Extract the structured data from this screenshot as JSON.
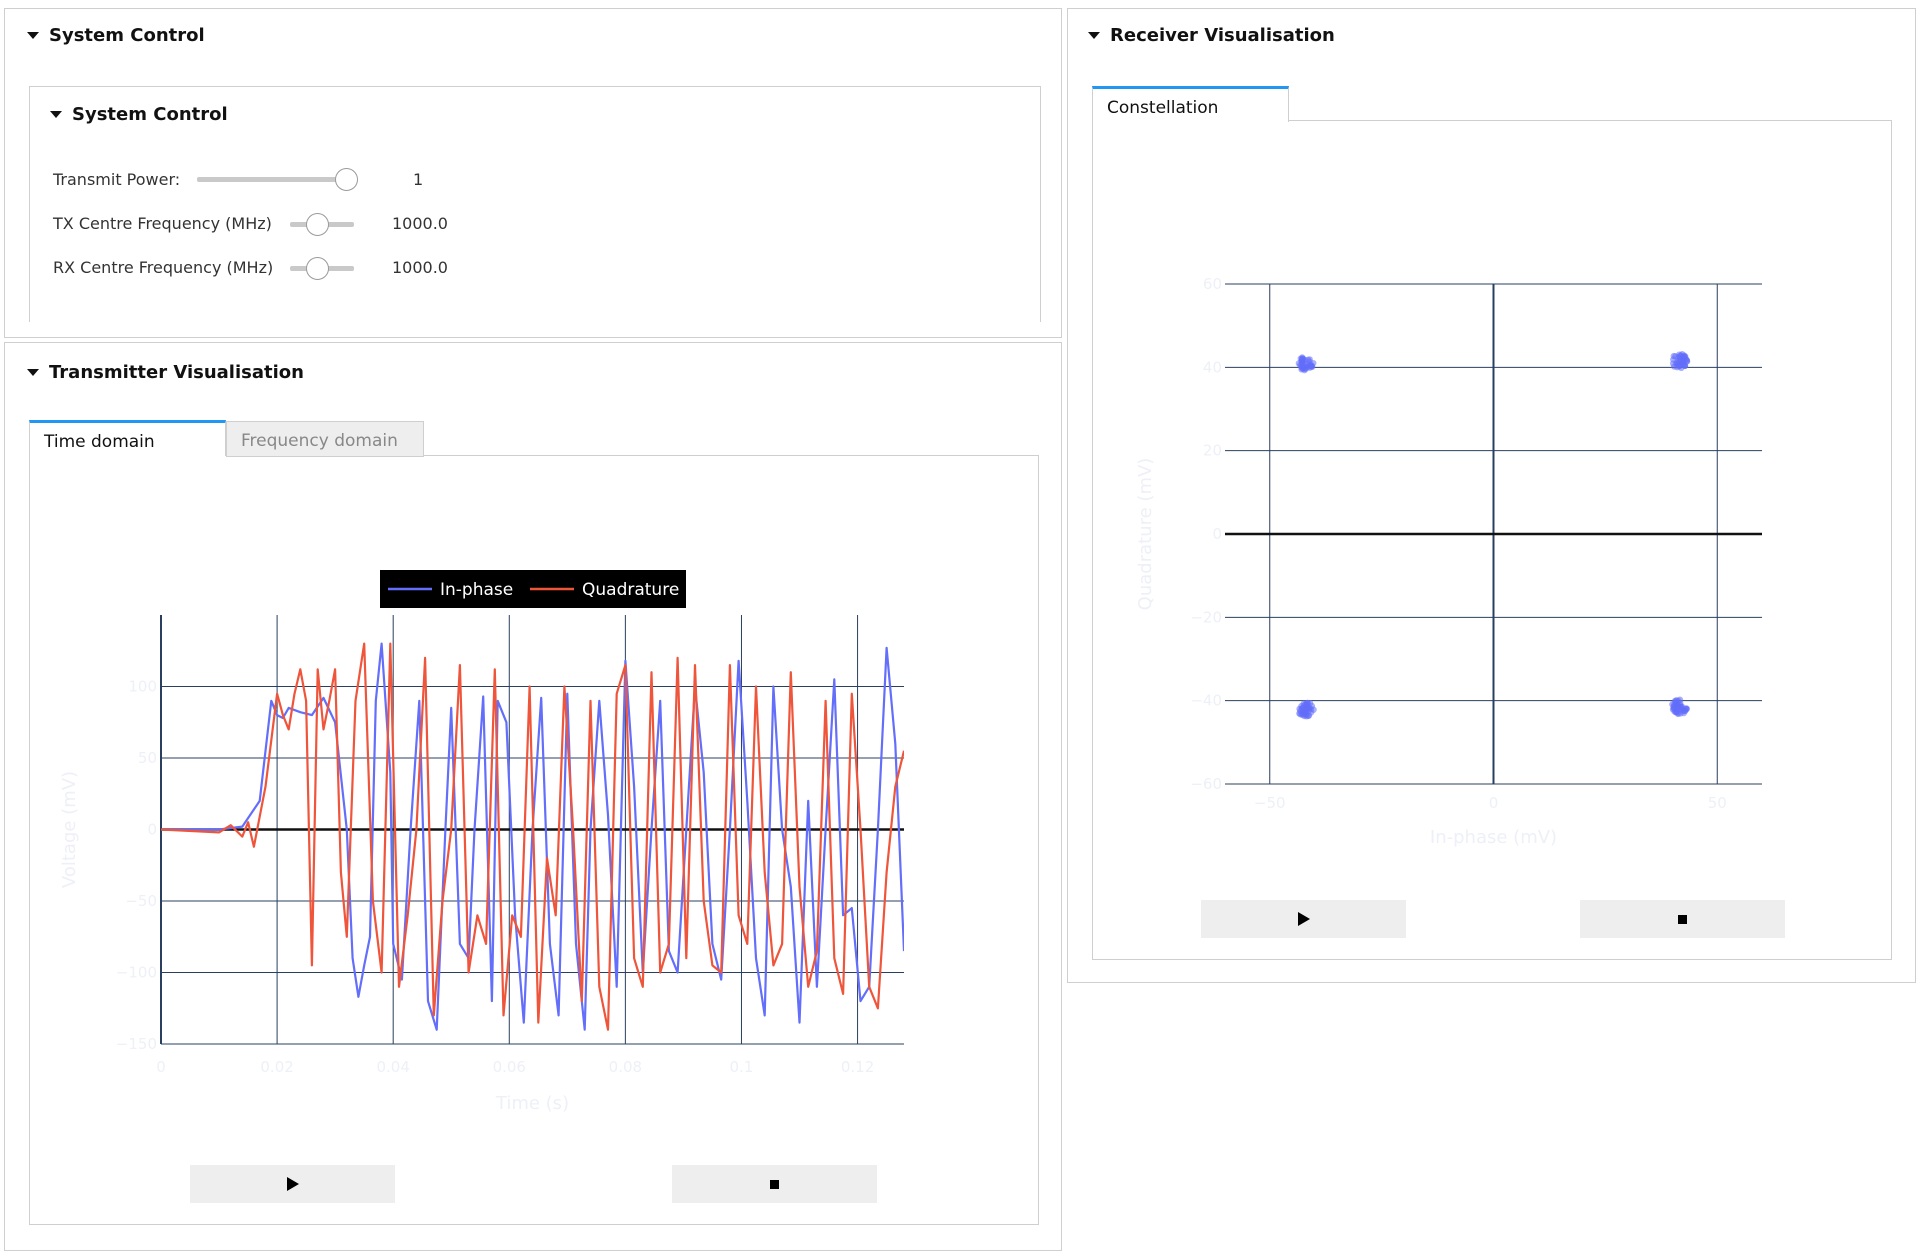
{
  "system_control": {
    "outer_title": "System Control",
    "inner_title": "System Control",
    "controls": [
      {
        "label": "Transmit Power:",
        "value": "1",
        "level": 1.0
      },
      {
        "label": "TX Centre Frequency (MHz)",
        "value": "1000.0",
        "level": 0.5
      },
      {
        "label": "RX Centre Frequency (MHz)",
        "value": "1000.0",
        "level": 0.5
      }
    ]
  },
  "transmitter": {
    "title": "Transmitter Visualisation",
    "tabs": [
      "Time domain",
      "Frequency domain"
    ],
    "active_tab": "Time domain",
    "play_icon": "play-icon",
    "stop_icon": "stop-icon"
  },
  "receiver": {
    "title": "Receiver Visualisation",
    "tabs": [
      "Constellation"
    ],
    "active_tab": "Constellation",
    "play_icon": "play-icon",
    "stop_icon": "stop-icon"
  },
  "chart_data": [
    {
      "type": "line",
      "xlabel": "Time (s)",
      "ylabel": "Voltage (mV)",
      "xlim": [
        0,
        0.128
      ],
      "ylim": [
        -150,
        150
      ],
      "xticks": [
        0,
        0.02,
        0.04,
        0.06,
        0.08,
        0.1,
        0.12
      ],
      "xtick_labels": [
        "0",
        "0.02",
        "0.04",
        "0.06",
        "0.08",
        "0.1",
        "0.12"
      ],
      "yticks": [
        -150,
        -100,
        -50,
        0,
        50,
        100
      ],
      "ytick_labels": [
        "−150",
        "−100",
        "−50",
        "0",
        "50",
        "100"
      ],
      "legend_position": "top",
      "legend_background": "#000000",
      "series": [
        {
          "name": "In-phase",
          "color": "#636efa",
          "x": [
            0,
            0.01,
            0.014,
            0.017,
            0.019,
            0.02,
            0.021,
            0.022,
            0.024,
            0.026,
            0.028,
            0.03,
            0.032,
            0.033,
            0.034,
            0.035,
            0.036,
            0.037,
            0.038,
            0.0395,
            0.04,
            0.0415,
            0.043,
            0.0445,
            0.046,
            0.0475,
            0.049,
            0.05,
            0.0515,
            0.053,
            0.054,
            0.0555,
            0.057,
            0.058,
            0.0595,
            0.061,
            0.0625,
            0.064,
            0.0655,
            0.067,
            0.0685,
            0.07,
            0.0715,
            0.073,
            0.074,
            0.0755,
            0.077,
            0.0785,
            0.08,
            0.0815,
            0.083,
            0.0845,
            0.086,
            0.0875,
            0.089,
            0.0905,
            0.092,
            0.0935,
            0.095,
            0.0965,
            0.098,
            0.0995,
            0.101,
            0.1025,
            0.104,
            0.1055,
            0.107,
            0.1085,
            0.11,
            0.1115,
            0.113,
            0.1145,
            0.116,
            0.1175,
            0.119,
            0.1205,
            0.122,
            0.1235,
            0.125,
            0.1265,
            0.128
          ],
          "y": [
            0,
            0,
            2,
            20,
            90,
            80,
            78,
            85,
            82,
            80,
            92,
            75,
            0,
            -90,
            -117,
            -95,
            -75,
            90,
            130,
            40,
            -80,
            -105,
            0,
            90,
            -120,
            -140,
            0,
            85,
            -80,
            -90,
            0,
            93,
            -120,
            90,
            75,
            -60,
            -135,
            0,
            92,
            -80,
            -130,
            95,
            -80,
            -140,
            0,
            90,
            10,
            -110,
            118,
            30,
            -100,
            0,
            90,
            -85,
            -100,
            0,
            100,
            40,
            -80,
            -105,
            0,
            118,
            20,
            -90,
            -130,
            100,
            0,
            -40,
            -135,
            20,
            -110,
            0,
            105,
            -60,
            -55,
            -120,
            -110,
            0,
            127,
            60,
            -85
          ]
        },
        {
          "name": "Quadrature",
          "color": "#ef553b",
          "x": [
            0,
            0.01,
            0.012,
            0.014,
            0.015,
            0.016,
            0.018,
            0.02,
            0.021,
            0.022,
            0.023,
            0.024,
            0.025,
            0.026,
            0.027,
            0.028,
            0.029,
            0.03,
            0.031,
            0.032,
            0.0335,
            0.035,
            0.0365,
            0.038,
            0.0395,
            0.041,
            0.0425,
            0.044,
            0.0455,
            0.047,
            0.0485,
            0.05,
            0.0515,
            0.053,
            0.0545,
            0.056,
            0.0575,
            0.059,
            0.0605,
            0.062,
            0.0635,
            0.065,
            0.0665,
            0.068,
            0.0695,
            0.071,
            0.0725,
            0.074,
            0.0755,
            0.077,
            0.0785,
            0.08,
            0.0815,
            0.083,
            0.0845,
            0.086,
            0.0875,
            0.089,
            0.0905,
            0.092,
            0.0935,
            0.095,
            0.0965,
            0.098,
            0.0995,
            0.101,
            0.1025,
            0.104,
            0.1055,
            0.107,
            0.1085,
            0.11,
            0.1115,
            0.113,
            0.1145,
            0.116,
            0.1175,
            0.119,
            0.1205,
            0.122,
            0.1235,
            0.125,
            0.1265,
            0.128
          ],
          "y": [
            0,
            -2,
            3,
            -5,
            5,
            -12,
            30,
            95,
            80,
            70,
            95,
            112,
            90,
            -95,
            112,
            70,
            90,
            112,
            -30,
            -75,
            90,
            130,
            -50,
            -100,
            130,
            -110,
            -60,
            0,
            120,
            -130,
            -50,
            0,
            115,
            -100,
            -60,
            -80,
            112,
            -130,
            -60,
            -75,
            100,
            -135,
            -20,
            -60,
            100,
            0,
            -120,
            90,
            -110,
            -140,
            95,
            115,
            -90,
            -110,
            110,
            -100,
            -80,
            120,
            -90,
            115,
            -50,
            -95,
            -100,
            115,
            -60,
            -80,
            100,
            -30,
            -95,
            -80,
            110,
            -40,
            -110,
            -85,
            90,
            -90,
            -115,
            95,
            0,
            -110,
            -125,
            -30,
            30,
            55
          ]
        }
      ]
    },
    {
      "type": "scatter",
      "xlabel": "In-phase (mV)",
      "ylabel": "Quadrature (mV)",
      "xlim": [
        -60,
        60
      ],
      "ylim": [
        -60,
        60
      ],
      "xticks": [
        -50,
        0,
        50
      ],
      "xtick_labels": [
        "−50",
        "0",
        "50"
      ],
      "yticks": [
        -60,
        -40,
        -20,
        0,
        20,
        40,
        60
      ],
      "ytick_labels": [
        "−60",
        "−40",
        "−20",
        "0",
        "20",
        "40",
        "60"
      ],
      "series": [
        {
          "color": "#636efa",
          "clusters": [
            {
              "center": [
                -42,
                41
              ],
              "spread": 1.8,
              "count": 40
            },
            {
              "center": [
                41.5,
                41.5
              ],
              "spread": 1.8,
              "count": 40
            },
            {
              "center": [
                -42,
                -42
              ],
              "spread": 1.8,
              "count": 40
            },
            {
              "center": [
                41.5,
                -41.5
              ],
              "spread": 1.8,
              "count": 40
            }
          ]
        }
      ]
    }
  ]
}
